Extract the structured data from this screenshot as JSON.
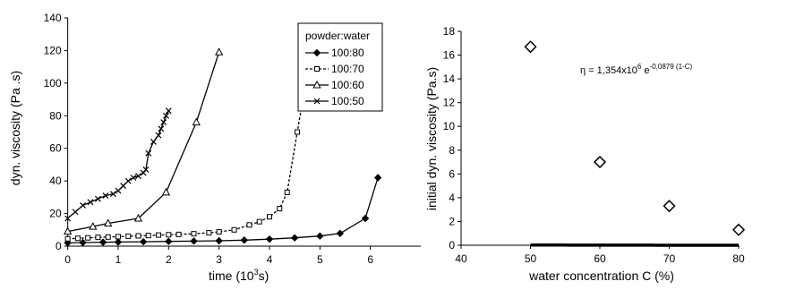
{
  "chart_data": [
    {
      "type": "line",
      "xlabel_main": "time (10",
      "xlabel_sup": "3",
      "xlabel_end": "s)",
      "ylabel": "dyn. viscosity  (Pa .s)",
      "xlim": [
        -0.1,
        7
      ],
      "ylim": [
        0,
        140
      ],
      "x_ticks": [
        0,
        1,
        2,
        3,
        4,
        5,
        6
      ],
      "y_ticks": [
        0,
        20,
        40,
        60,
        80,
        100,
        120,
        140
      ],
      "legend": {
        "title": "powder:water",
        "placement": "top-right"
      },
      "series": [
        {
          "name": "100:80",
          "marker": "filled-diamond",
          "line": "solid",
          "points": [
            [
              0,
              2
            ],
            [
              0.3,
              2.2
            ],
            [
              0.7,
              2.4
            ],
            [
              1,
              2.5
            ],
            [
              1.5,
              2.7
            ],
            [
              2,
              2.9
            ],
            [
              2.5,
              3.1
            ],
            [
              3,
              3.3
            ],
            [
              3.5,
              3.7
            ],
            [
              4,
              4.3
            ],
            [
              4.5,
              5.1
            ],
            [
              5,
              6.2
            ],
            [
              5.4,
              7.8
            ],
            [
              5.9,
              17
            ],
            [
              6.15,
              42
            ]
          ]
        },
        {
          "name": "100:70",
          "marker": "open-square",
          "line": "dashed",
          "points": [
            [
              0,
              4.5
            ],
            [
              0.2,
              4.8
            ],
            [
              0.4,
              5.1
            ],
            [
              0.6,
              5.4
            ],
            [
              0.8,
              5.6
            ],
            [
              1,
              5.8
            ],
            [
              1.2,
              6.1
            ],
            [
              1.4,
              6.3
            ],
            [
              1.6,
              6.5
            ],
            [
              1.8,
              6.8
            ],
            [
              2,
              7
            ],
            [
              2.2,
              7.2
            ],
            [
              2.5,
              7.6
            ],
            [
              2.8,
              8.2
            ],
            [
              3,
              8.8
            ],
            [
              3.3,
              10
            ],
            [
              3.6,
              13
            ],
            [
              3.8,
              15
            ],
            [
              4,
              18
            ],
            [
              4.2,
              23
            ],
            [
              4.35,
              33
            ],
            [
              4.55,
              70
            ],
            [
              4.72,
              100
            ]
          ]
        },
        {
          "name": "100:60",
          "marker": "open-triangle",
          "line": "solid",
          "points": [
            [
              0,
              9
            ],
            [
              0.5,
              12
            ],
            [
              0.8,
              14
            ],
            [
              1.4,
              17
            ],
            [
              1.95,
              33
            ],
            [
              2.55,
              76
            ],
            [
              3,
              119
            ]
          ]
        },
        {
          "name": "100:50",
          "marker": "x",
          "line": "solid",
          "points": [
            [
              0,
              17
            ],
            [
              0.15,
              21
            ],
            [
              0.3,
              25
            ],
            [
              0.45,
              27
            ],
            [
              0.6,
              29
            ],
            [
              0.75,
              31
            ],
            [
              0.9,
              32
            ],
            [
              1,
              34
            ],
            [
              1.1,
              37
            ],
            [
              1.2,
              40
            ],
            [
              1.3,
              42
            ],
            [
              1.4,
              43
            ],
            [
              1.5,
              45
            ],
            [
              1.55,
              47
            ],
            [
              1.6,
              57
            ],
            [
              1.7,
              64
            ],
            [
              1.8,
              68
            ],
            [
              1.85,
              72
            ],
            [
              1.9,
              76
            ],
            [
              1.95,
              80
            ],
            [
              2,
              83
            ]
          ]
        }
      ]
    },
    {
      "type": "scatter",
      "xlabel": "water concentration C (%)",
      "ylabel": "initial dyn. viscosity (Pa.s)",
      "xlim": [
        40,
        80
      ],
      "ylim": [
        0,
        18
      ],
      "x_ticks": [
        40,
        50,
        60,
        70,
        80
      ],
      "y_ticks": [
        0,
        2,
        4,
        6,
        8,
        10,
        12,
        14,
        16,
        18
      ],
      "equation": {
        "lhs": "η = 1,354x10",
        "lhs_sup": "6",
        "mid": " e",
        "exp": "-0,0879 (1-C)"
      },
      "points": [
        [
          50,
          16.7
        ],
        [
          60,
          7
        ],
        [
          70,
          3.3
        ],
        [
          80,
          1.3
        ]
      ],
      "fit": {
        "a": 1354000,
        "b": 0.0879
      },
      "marker": "open-diamond"
    }
  ]
}
